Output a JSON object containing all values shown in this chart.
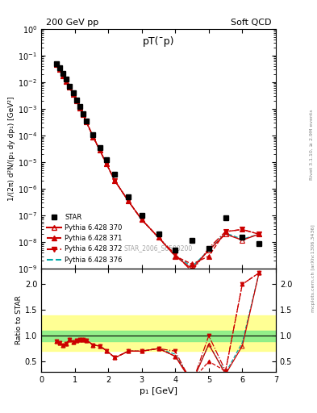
{
  "title_left": "200 GeV pp",
  "title_right": "Soft QCD",
  "plot_title": "pT(¯p)",
  "watermark": "STAR_2006_S6500200",
  "ylabel_main": "1/(2π) d²N/(p₁ dy dp₁) [GeV²]",
  "ylabel_ratio": "Ratio to STAR",
  "xlabel": "p₁ [GeV]",
  "right_label": "Rivet 3.1.10, ≥ 2.9M events",
  "right_label2": "mcplots.cern.ch [arXiv:1306.3436]",
  "star_x": [
    0.45,
    0.55,
    0.65,
    0.75,
    0.85,
    0.95,
    1.05,
    1.15,
    1.25,
    1.35,
    1.55,
    1.75,
    1.95,
    2.2,
    2.6,
    3.0,
    3.5,
    4.0,
    4.5,
    5.0,
    5.5,
    6.0,
    6.5
  ],
  "star_y": [
    0.05,
    0.035,
    0.022,
    0.013,
    0.007,
    0.004,
    0.0022,
    0.0012,
    0.00065,
    0.00035,
    0.00011,
    3.5e-05,
    1.2e-05,
    3.5e-06,
    5e-07,
    1e-07,
    2e-08,
    5e-09,
    1.2e-08,
    6e-09,
    8e-08,
    1.5e-08,
    9e-09
  ],
  "p370_x": [
    0.45,
    0.55,
    0.65,
    0.75,
    0.85,
    0.95,
    1.05,
    1.15,
    1.25,
    1.35,
    1.55,
    1.75,
    1.95,
    2.2,
    2.6,
    3.0,
    3.5,
    4.0,
    4.5,
    5.0,
    5.5,
    6.0,
    6.5
  ],
  "p370_y": [
    0.045,
    0.03,
    0.018,
    0.011,
    0.0065,
    0.0035,
    0.002,
    0.0011,
    0.0006,
    0.00032,
    9e-05,
    2.8e-05,
    8.5e-06,
    2e-06,
    3.5e-07,
    7e-08,
    1.5e-08,
    3e-09,
    1e-09,
    5e-09,
    2e-08,
    1.2e-08,
    2e-08
  ],
  "p371_x": [
    0.45,
    0.55,
    0.65,
    0.75,
    0.85,
    0.95,
    1.05,
    1.15,
    1.25,
    1.35,
    1.55,
    1.75,
    1.95,
    2.2,
    2.6,
    3.0,
    3.5,
    4.0,
    4.5,
    5.0,
    5.5,
    6.0,
    6.5
  ],
  "p371_y": [
    0.045,
    0.03,
    0.018,
    0.011,
    0.0065,
    0.0035,
    0.002,
    0.0011,
    0.0006,
    0.00032,
    9e-05,
    2.8e-05,
    8.5e-06,
    2e-06,
    3.5e-07,
    7e-08,
    1.5e-08,
    3e-09,
    1.5e-09,
    3e-09,
    2.5e-08,
    3e-08,
    2e-08
  ],
  "p372_x": [
    0.45,
    0.55,
    0.65,
    0.75,
    0.85,
    0.95,
    1.05,
    1.15,
    1.25,
    1.35,
    1.55,
    1.75,
    1.95,
    2.2,
    2.6,
    3.0,
    3.5,
    4.0,
    4.5,
    5.0,
    5.5,
    6.0,
    6.5
  ],
  "p372_y": [
    0.045,
    0.03,
    0.018,
    0.011,
    0.0065,
    0.0035,
    0.002,
    0.0011,
    0.0006,
    0.00032,
    9e-05,
    2.8e-05,
    8.5e-06,
    2e-06,
    3.5e-07,
    7e-08,
    1.5e-08,
    3.5e-09,
    8e-10,
    6e-09,
    2.5e-08,
    3e-08,
    2e-08
  ],
  "p376_x": [
    0.45,
    0.55,
    0.65,
    0.75,
    0.85,
    0.95,
    1.05,
    1.15,
    1.25,
    1.35,
    1.55,
    1.75,
    1.95,
    2.2,
    2.6,
    3.0,
    3.5,
    4.0,
    4.5,
    5.0,
    5.5,
    6.0,
    6.5
  ],
  "p376_y": [
    0.045,
    0.03,
    0.018,
    0.011,
    0.0065,
    0.0035,
    0.002,
    0.0011,
    0.0006,
    0.00032,
    9e-05,
    2.8e-05,
    8.5e-06,
    2e-06,
    3.5e-07,
    7e-08,
    1.5e-08,
    3.2e-09,
    1.2e-09,
    5e-09,
    2.2e-08,
    1.3e-08,
    2e-08
  ],
  "ylim_main": [
    1e-09,
    1.0
  ],
  "xlim": [
    0.0,
    7.0
  ],
  "ylim_ratio": [
    0.3,
    2.3
  ],
  "ratio_yticks": [
    0.5,
    1.0,
    1.5,
    2.0
  ],
  "color_370": "#cc0000",
  "color_371": "#cc0000",
  "color_372": "#cc0000",
  "color_376": "#00aaaa",
  "band_green_low": 0.9,
  "band_green_high": 1.1,
  "band_yellow_low": 0.7,
  "band_yellow_high": 1.4
}
